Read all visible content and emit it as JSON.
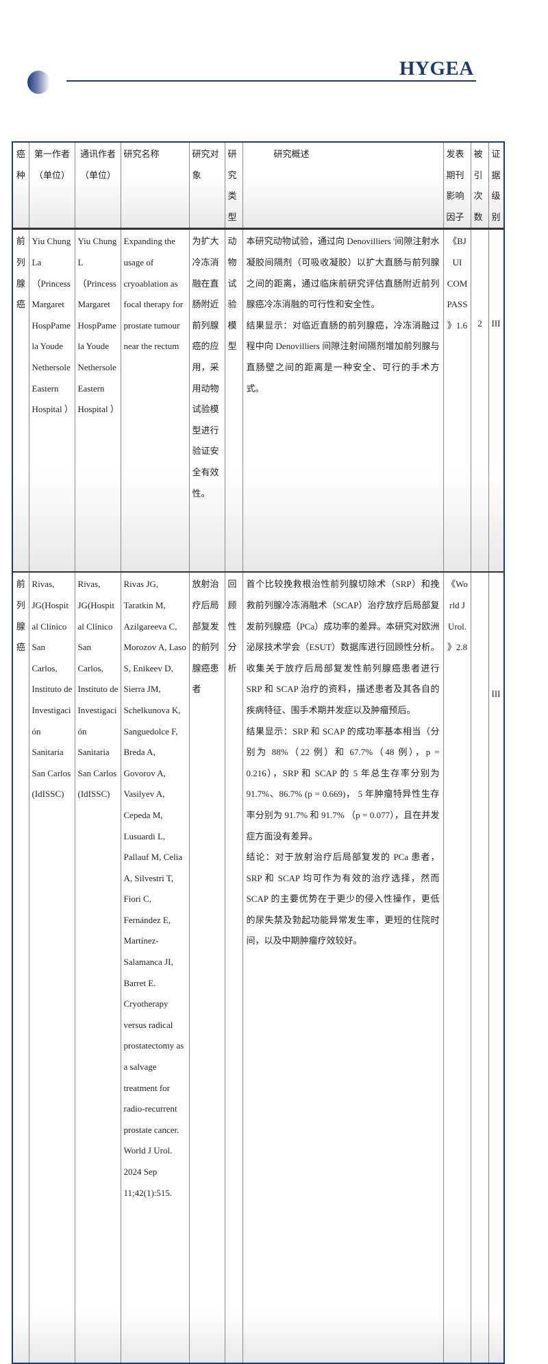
{
  "header": {
    "brand": "HYGEA",
    "brand_color": "#1c3a7a"
  },
  "table": {
    "columns": [
      "癌种",
      "第一作者（单位）",
      "通讯作者（单位）",
      "研究名称",
      "研究对象",
      "研究类型",
      "研究概述",
      "发表期刊影响因子",
      "被引次数",
      "证据级别"
    ],
    "rows": [
      {
        "cancer": "前列腺癌",
        "first_author": "Yiu Chung La （Princess Margaret HospPamela Youde Nethersole Eastern Hospital ）",
        "corresponding_author": "Yiu Chung L （PrincessMargaret HospPamela Youde Nethersole Eastern Hospital ）",
        "title": "Expanding the usage of cryoablation as focal therapy for prostate tumour near the rectum",
        "subject": "为扩大冷冻消融在直肠附近前列腺癌的应用，采用动物试验模型进行验证安全有效性。",
        "type": "动物试验模型",
        "summary": [
          "本研究动物试验，通过向 Denovilliers '间隙注射水凝胶间隔剂（可吸收凝胶）以扩大直肠与前列腺之间的距离，通过临床前研究评估直肠附近前列腺癌冷冻消融的可行性和安全性。",
          "结果显示：对临近直肠的前列腺癌，冷冻消融过程中向 Denovilliers 间隙注射间隔剂增加前列腺与直肠壁之间的距离是一种安全、可行的手术方式。"
        ],
        "journal_if": "《BJUI COMPASS》1.6",
        "citations": "2",
        "evidence": "III"
      },
      {
        "cancer": "前列腺癌",
        "first_author": "Rivas, JG(Hospital Clínico San Carlos, Instituto de Investigación Sanitaria San Carlos (IdISSC)",
        "corresponding_author": "Rivas, JG(Hospital Clínico San Carlos, Instituto de Investigación Sanitaria San Carlos (IdISSC)",
        "title": "Rivas JG, Taratkin M, Azilgareeva C, Morozov A, Laso S, Enikeev D, Sierra JM, Schelkunova K, Sanguedolce F, Breda A, Govorov A, Vasilyev A, Cepeda M, Lusuardi L, Pallauf M, Celia A, Silvestri T, Fiori C, Fernández E, Martínez-Salamanca JI, Barret E. Cryotherapy versus radical prostatectomy as a salvage treatment for radio-recurrent prostate cancer. World J Urol. 2024 Sep 11;42(1):515.",
        "subject": "放射治疗后局部复发的前列腺癌患者",
        "type": "回顾性分析",
        "summary": [
          "首个比较挽救根治性前列腺切除术（SRP）和挽救前列腺冷冻消融术（SCAP）治疗放疗后局部复发前列腺癌（PCa）成功率的差异。本研究对欧洲泌尿技术学会（ESUT）数据库进行回顾性分析。收集关于放疗后局部复发性前列腺癌患者进行 SRP 和 SCAP 治疗的资料，描述患者及其各自的疾病特征、围手术期并发症以及肿瘤预后。",
          "结果显示：SRP 和 SCAP 的成功率基本相当（分别为 88%（22 例）和 67.7%（48 例），p = 0.216），SRP 和 SCAP 的 5 年总生存率分别为 91.7%、86.7% (p = 0.669)， 5 年肿瘤特异性生存率分别为 91.7% 和 91.7% （p = 0.077），且在并发症方面没有差异。",
          "结论：对于放射治疗后局部复发的 PCa 患者，SRP 和 SCAP 均可作为有效的治疗选择，然而 SCAP 的主要优势在于更少的侵入性操作，更低的尿失禁及勃起功能异常发生率，更短的住院时间，以及中期肿瘤疗效较好。"
        ],
        "journal_if": "《World J Urol.》2.8",
        "citations": "",
        "evidence": "III"
      }
    ]
  }
}
